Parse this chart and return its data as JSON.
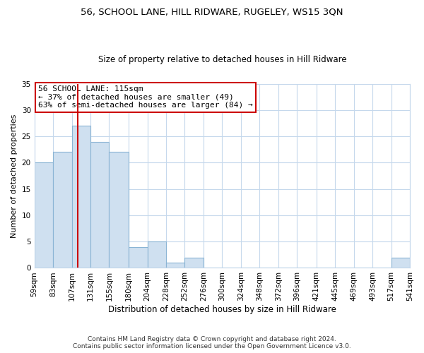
{
  "title": "56, SCHOOL LANE, HILL RIDWARE, RUGELEY, WS15 3QN",
  "subtitle": "Size of property relative to detached houses in Hill Ridware",
  "xlabel": "Distribution of detached houses by size in Hill Ridware",
  "ylabel": "Number of detached properties",
  "footer_line1": "Contains HM Land Registry data © Crown copyright and database right 2024.",
  "footer_line2": "Contains public sector information licensed under the Open Government Licence v3.0.",
  "annotation_line1": "56 SCHOOL LANE: 115sqm",
  "annotation_line2": "← 37% of detached houses are smaller (49)",
  "annotation_line3": "63% of semi-detached houses are larger (84) →",
  "bar_edges": [
    59,
    83,
    107,
    131,
    155,
    180,
    204,
    228,
    252,
    276,
    300,
    324,
    348,
    372,
    396,
    421,
    445,
    469,
    493,
    517,
    541
  ],
  "bar_heights": [
    20,
    22,
    27,
    24,
    22,
    4,
    5,
    1,
    2,
    0,
    0,
    0,
    0,
    0,
    0,
    0,
    0,
    0,
    0,
    2
  ],
  "bar_color": "#cfe0f0",
  "bar_edgecolor": "#8ab4d4",
  "reference_line_x": 115,
  "reference_line_color": "#cc0000",
  "ylim": [
    0,
    35
  ],
  "background_color": "#ffffff",
  "grid_color": "#c5d8ec",
  "title_fontsize": 9.5,
  "subtitle_fontsize": 8.5,
  "xlabel_fontsize": 8.5,
  "ylabel_fontsize": 8.0,
  "tick_fontsize": 7.5,
  "footer_fontsize": 6.5,
  "ann_fontsize": 8.0
}
